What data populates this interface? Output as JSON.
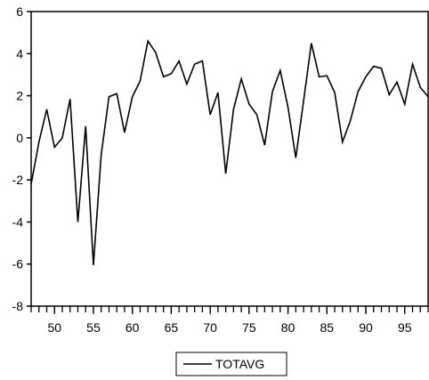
{
  "chart_data": {
    "type": "line",
    "title": "",
    "xlabel": "",
    "ylabel": "",
    "xlim": [
      47,
      98
    ],
    "ylim": [
      -8,
      6
    ],
    "x_ticks": [
      50,
      55,
      60,
      65,
      70,
      75,
      80,
      85,
      90,
      95
    ],
    "y_ticks": [
      -8,
      -6,
      -4,
      -2,
      0,
      2,
      4,
      6
    ],
    "x_tick_labels": [
      "50",
      "55",
      "60",
      "65",
      "70",
      "75",
      "80",
      "85",
      "90",
      "95"
    ],
    "y_tick_labels": [
      "-8",
      "-6",
      "-4",
      "-2",
      "0",
      "2",
      "4",
      "6"
    ],
    "grid": false,
    "legend_position": "bottom-center",
    "series": [
      {
        "name": "TOTAVG",
        "color": "#000000",
        "x": [
          47,
          48,
          49,
          50,
          51,
          52,
          53,
          54,
          55,
          56,
          57,
          58,
          59,
          60,
          61,
          62,
          63,
          64,
          65,
          66,
          67,
          68,
          69,
          70,
          71,
          72,
          73,
          74,
          75,
          76,
          77,
          78,
          79,
          80,
          81,
          82,
          83,
          84,
          85,
          86,
          87,
          88,
          89,
          90,
          91,
          92,
          93,
          94,
          95,
          96,
          97,
          98
        ],
        "values": [
          -2.2,
          -0.2,
          1.35,
          -0.45,
          0.0,
          1.85,
          -4.0,
          0.55,
          -6.05,
          -0.8,
          1.95,
          2.1,
          0.25,
          1.95,
          2.7,
          4.6,
          4.05,
          2.9,
          3.05,
          3.65,
          2.55,
          3.5,
          3.65,
          1.1,
          2.15,
          -1.7,
          1.35,
          2.8,
          1.6,
          1.1,
          -0.35,
          2.2,
          3.2,
          1.45,
          -0.95,
          1.75,
          4.5,
          2.9,
          2.95,
          2.15,
          -0.2,
          0.8,
          2.2,
          2.9,
          3.4,
          3.3,
          2.05,
          2.65,
          1.6,
          3.5,
          2.4,
          1.95
        ]
      }
    ]
  }
}
